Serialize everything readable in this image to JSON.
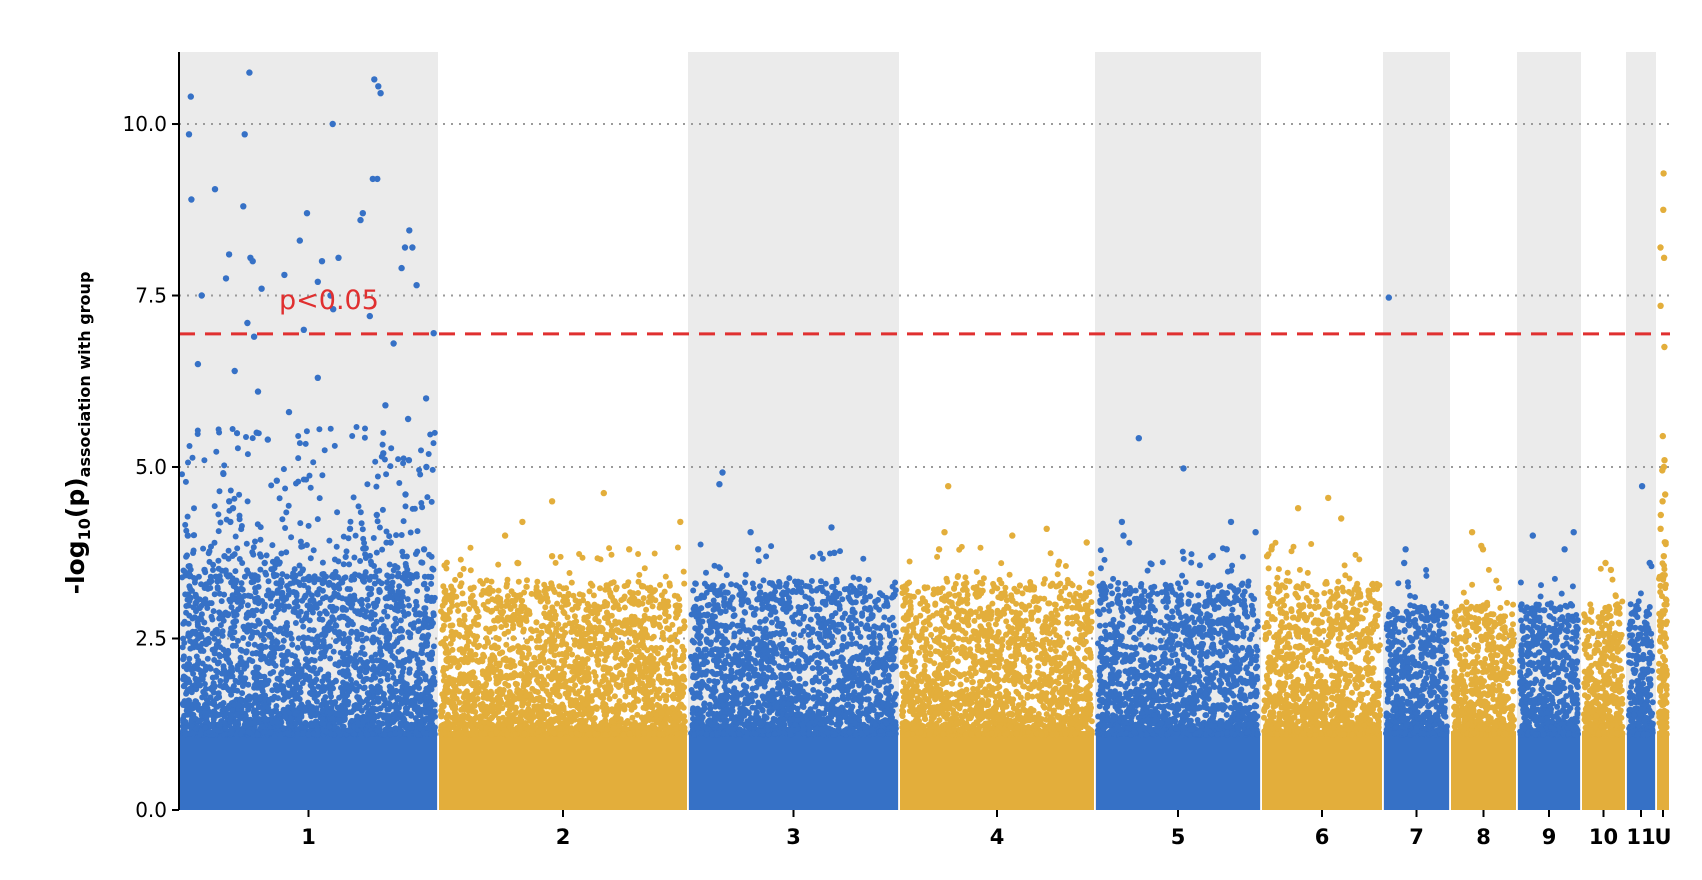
{
  "chart_data": {
    "type": "scatter",
    "subtype": "manhattan",
    "title": "",
    "xlabel": "",
    "ylabel": {
      "main": "-log",
      "sub": "10",
      "paren": "(p)",
      "subscript_text": "association with group"
    },
    "ylim": [
      0,
      11.05
    ],
    "yticks": [
      0.0,
      2.5,
      5.0,
      7.5,
      10.0
    ],
    "ytick_labels": [
      "0.0",
      "2.5",
      "5.0",
      "7.5",
      "10.0"
    ],
    "grid": {
      "y_dotted_at": [
        2.5,
        5.0,
        7.5,
        10.0
      ]
    },
    "threshold": {
      "value": 6.94,
      "label": "p<0.05",
      "color": "#e03030",
      "style": "dashed"
    },
    "colors": {
      "odd": "#3671c6",
      "even": "#e3ae3b",
      "band": "#ebebeb",
      "grid": "#9a9a9a"
    },
    "chromosomes": [
      {
        "label": "1",
        "relative_length": 259,
        "band": true,
        "color": "odd",
        "base_max": 3.4,
        "tail_density": 1.0,
        "peaks": [
          10.75,
          10.65,
          10.55,
          10.45,
          10.4,
          10.0,
          9.85,
          9.85,
          9.2,
          9.2,
          9.05,
          8.9,
          8.8,
          8.7,
          8.7,
          8.6,
          8.45,
          8.3,
          8.2,
          8.2,
          8.1,
          8.05,
          8.05,
          8.0,
          8.0,
          7.9,
          7.8,
          7.75,
          7.7,
          7.65,
          7.6,
          7.5,
          7.5,
          7.3,
          7.2,
          7.1,
          7.0,
          6.95,
          6.9,
          6.8,
          6.5,
          6.4,
          6.3,
          6.1,
          6.0,
          5.9,
          5.8,
          5.7,
          5.5,
          5.4,
          5.2,
          5.1,
          5.0,
          4.9,
          4.8,
          4.6,
          4.5,
          4.4,
          4.3,
          4.2,
          4.1,
          4.0,
          3.9,
          3.8,
          3.7,
          3.6,
          3.5
        ]
      },
      {
        "label": "2",
        "relative_length": 250,
        "band": false,
        "color": "even",
        "base_max": 3.3,
        "tail_density": 0.15,
        "peaks": [
          4.62,
          4.5,
          4.2,
          4.2,
          4.0,
          3.8,
          3.7,
          3.6
        ]
      },
      {
        "label": "3",
        "relative_length": 211,
        "band": true,
        "color": "odd",
        "base_max": 3.3,
        "tail_density": 0.15,
        "peaks": [
          4.92,
          4.75,
          4.12,
          4.05,
          3.8,
          3.75
        ]
      },
      {
        "label": "4",
        "relative_length": 196,
        "band": false,
        "color": "even",
        "base_max": 3.3,
        "tail_density": 0.15,
        "peaks": [
          4.72,
          4.1,
          4.05,
          4.0,
          3.9,
          3.8
        ]
      },
      {
        "label": "5",
        "relative_length": 166,
        "band": true,
        "color": "odd",
        "base_max": 3.3,
        "tail_density": 0.15,
        "peaks": [
          5.42,
          4.98,
          4.2,
          4.2,
          4.05,
          4.0,
          3.8
        ]
      },
      {
        "label": "6",
        "relative_length": 122,
        "band": false,
        "color": "even",
        "base_max": 3.3,
        "tail_density": 0.15,
        "peaks": [
          4.55,
          4.4,
          4.25,
          3.8,
          3.7
        ]
      },
      {
        "label": "7",
        "relative_length": 67,
        "band": true,
        "color": "odd",
        "base_max": 3.0,
        "tail_density": 0.1,
        "peaks": [
          7.47,
          3.8,
          3.6
        ]
      },
      {
        "label": "8",
        "relative_length": 67,
        "band": false,
        "color": "even",
        "base_max": 3.0,
        "tail_density": 0.1,
        "peaks": [
          4.05,
          3.85,
          3.8
        ]
      },
      {
        "label": "9",
        "relative_length": 64,
        "band": true,
        "color": "odd",
        "base_max": 3.0,
        "tail_density": 0.1,
        "peaks": [
          4.05,
          4.0,
          3.8
        ]
      },
      {
        "label": "10",
        "relative_length": 45,
        "band": false,
        "color": "even",
        "base_max": 3.0,
        "tail_density": 0.1,
        "peaks": [
          3.6,
          3.5
        ]
      },
      {
        "label": "11",
        "relative_length": 30,
        "band": true,
        "color": "odd",
        "base_max": 3.0,
        "tail_density": 0.1,
        "peaks": [
          4.72,
          3.6
        ]
      },
      {
        "label": "U",
        "relative_length": 14,
        "band": false,
        "color": "even",
        "base_max": 3.4,
        "tail_density": 0.6,
        "peaks": [
          9.28,
          8.75,
          8.2,
          8.05,
          7.35,
          6.75,
          5.45,
          5.1,
          5.0,
          4.95,
          4.6,
          4.5,
          4.3,
          4.1,
          3.9,
          3.7
        ]
      }
    ]
  }
}
